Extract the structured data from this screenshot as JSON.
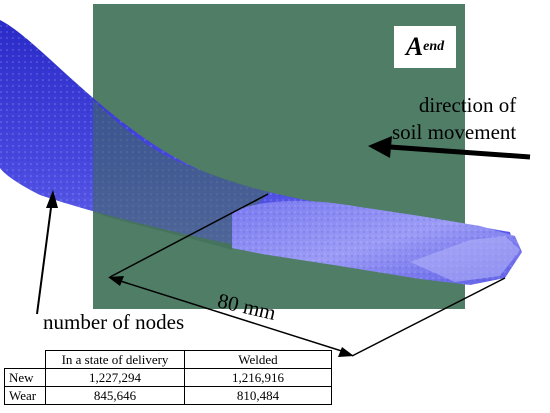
{
  "figure": {
    "plane_label_main": "A",
    "plane_label_sub": "end",
    "direction_label_line1": "direction of",
    "direction_label_line2": "soil movement",
    "nodes_label": "number of nodes",
    "length_label": "80 mm"
  },
  "table": {
    "headers": [
      "",
      "In a state of delivery",
      "Welded"
    ],
    "rows": [
      {
        "label": "New",
        "delivery": "1,227,294",
        "welded": "1,216,916"
      },
      {
        "label": "Wear",
        "delivery": "845,646",
        "welded": "810,484"
      }
    ]
  },
  "colors": {
    "plane": "#4f7d66",
    "mesh": "#2f2fd8",
    "mesh_highlight": "#8e8ef2"
  }
}
